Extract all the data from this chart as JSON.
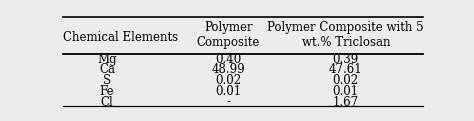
{
  "col0_header": "Chemical Elements",
  "col1_header": "Polymer\nComposite",
  "col2_header": "Polymer Composite with 5\nwt.% Triclosan",
  "rows": [
    [
      "Mg",
      "0.40",
      "0.39"
    ],
    [
      "Ca",
      "48.99",
      "47.61"
    ],
    [
      "S",
      "0.02",
      "0.02"
    ],
    [
      "Fe",
      "0.01",
      "0.01"
    ],
    [
      "Cl",
      "-",
      "1.67"
    ]
  ],
  "bg_color": "#ececec",
  "text_color": "#000000",
  "font_size": 8.5,
  "header_font_size": 8.5
}
